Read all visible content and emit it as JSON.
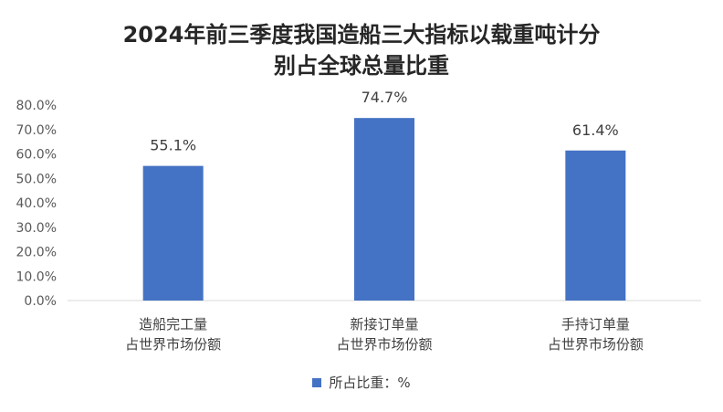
{
  "chart_data": {
    "type": "bar",
    "title": [
      "2024年前三季度我国造船三大指标以载重吨计分",
      "别占全球总量比重"
    ],
    "categories": [
      [
        "造船完工量",
        "占世界市场份额"
      ],
      [
        "新接订单量",
        "占世界市场份额"
      ],
      [
        "手持订单量",
        "占世界市场份额"
      ]
    ],
    "series": [
      {
        "name": "所占比重：%",
        "values": [
          55.1,
          74.7,
          61.4
        ],
        "color": "#4472C4"
      }
    ],
    "data_labels": [
      "55.1%",
      "74.7%",
      "61.4%"
    ],
    "ylim": [
      0,
      80
    ],
    "yticks": [
      "0.0%",
      "10.0%",
      "20.0%",
      "30.0%",
      "40.0%",
      "50.0%",
      "60.0%",
      "70.0%",
      "80.0%"
    ],
    "grid": false,
    "legend_position": "bottom"
  }
}
